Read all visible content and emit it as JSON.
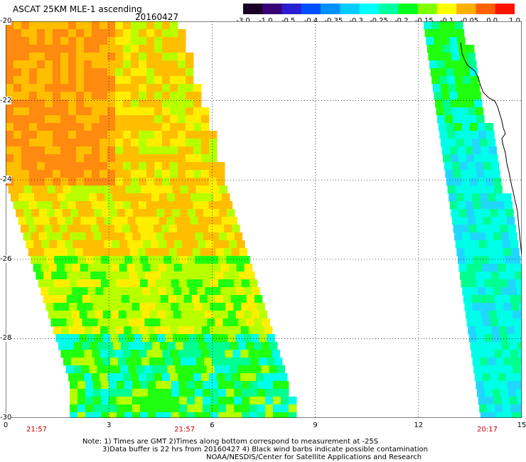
{
  "header": {
    "title": "ASCAT 25KM MLE-1 ascending",
    "date": "20160427"
  },
  "colorbar": {
    "labels": [
      "-3.0",
      "-1.0",
      "-0.5",
      "-0.4",
      "-0.35",
      "-0.3",
      "-0.25",
      "-0.2",
      "-0.15",
      "-0.1",
      "-0.05",
      "0.0",
      "1.0"
    ],
    "colors": [
      "#1a0026",
      "#3a0078",
      "#2a1ed0",
      "#0050ff",
      "#0090ff",
      "#00ccff",
      "#00ffff",
      "#00ffa0",
      "#00ff20",
      "#80ff00",
      "#ffff00",
      "#ffb000",
      "#ff6000",
      "#ff1000"
    ]
  },
  "axes": {
    "y_ticks": [
      "-20",
      "-22",
      "-24",
      "-26",
      "-28",
      "-30"
    ],
    "x_ticks": [
      "0",
      "3",
      "6",
      "9",
      "12",
      "15"
    ],
    "time_labels": [
      {
        "text": "21:57",
        "x_value": 0.9
      },
      {
        "text": "21:57",
        "x_value": 5.2
      },
      {
        "text": "20:17",
        "x_value": 14.0
      }
    ]
  },
  "map": {
    "x_range": [
      0,
      15
    ],
    "y_range": [
      -20,
      -30
    ],
    "palette": {
      "orange": "#ff8a10",
      "orange_yellow": "#ffbe00",
      "yellow": "#ffee00",
      "yellow_green": "#b8ff00",
      "green": "#20ff10",
      "aqua_green": "#00ff90",
      "cyan": "#00ffe8",
      "light_blue": "#20d8ff",
      "blue": "#1060ff",
      "coast": "#000000"
    }
  },
  "notes": {
    "line1": "Note: 1) Times are GMT 2)Times along bottom correspond to measurement at -25S",
    "line2": "3)Data buffer is 22 hrs from 20160427 4) Black wind barbs indicate possible contamination",
    "line3": "NOAA/NESDIS/Center for Satellite Applications and Research"
  }
}
